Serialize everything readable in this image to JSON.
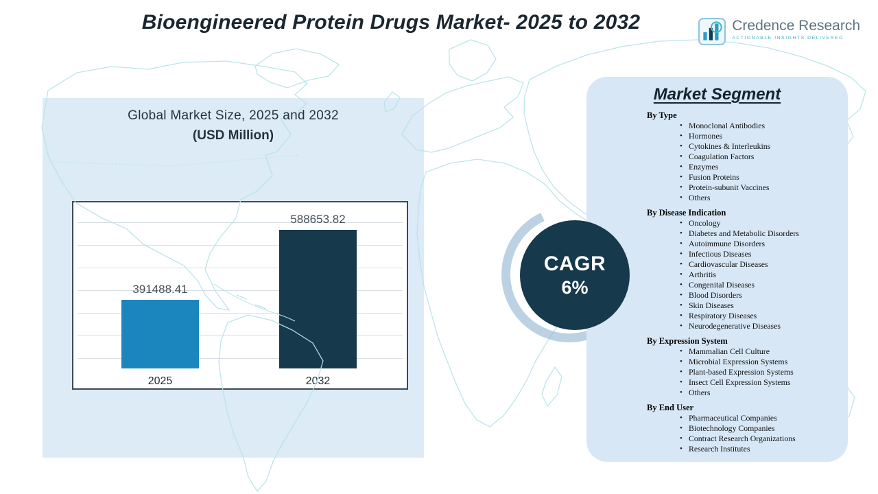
{
  "header": {
    "title": "Bioengineered Protein Drugs Market- 2025 to 2032",
    "logo": {
      "name": "Credence Research",
      "tagline": "Actionable Insights Delivered"
    }
  },
  "chart_panel": {
    "subtitle": "Global Market Size, 2025 and 2032",
    "units": "(USD Million)"
  },
  "chart_data": {
    "type": "bar",
    "title": "Global Market Size, 2025 and 2032 (USD Million)",
    "categories": [
      "2025",
      "2032"
    ],
    "values": [
      391488.41,
      588653.82
    ],
    "value_labels": [
      "391488.41",
      "588653.82"
    ],
    "bar_colors": [
      "#1b86bd",
      "#16394b"
    ],
    "xlabel": "",
    "ylabel": "",
    "ylim": [
      200000,
      650000
    ],
    "grid": true,
    "legend": false
  },
  "cagr": {
    "label": "CAGR",
    "value": "6%"
  },
  "segments": {
    "title": "Market Segment",
    "groups": [
      {
        "heading": "By Type",
        "items": [
          "Monoclonal Antibodies",
          "Hormones",
          "Cytokines & Interleukins",
          "Coagulation Factors",
          "Enzymes",
          "Fusion Proteins",
          "Protein-subunit Vaccines",
          "Others"
        ]
      },
      {
        "heading": "By Disease Indication",
        "items": [
          "Oncology",
          "Diabetes and Metabolic Disorders",
          "Autoimmune Disorders",
          "Infectious Diseases",
          "Cardiovascular Diseases",
          "Arthritis",
          "Congenital Diseases",
          "Blood Disorders",
          "Skin Diseases",
          "Respiratory Diseases",
          "Neurodegenerative Diseases"
        ]
      },
      {
        "heading": "By Expression System",
        "items": [
          "Mammalian Cell Culture",
          "Microbial Expression Systems",
          "Plant-based Expression Systems",
          "Insect Cell Expression Systems",
          "Others"
        ]
      },
      {
        "heading": "By End User",
        "items": [
          "Pharmaceutical Companies",
          "Biotechnology Companies",
          "Contract Research Organizations",
          "Research Institutes"
        ]
      }
    ]
  },
  "colors": {
    "bar_2025": "#1b86bd",
    "bar_2032": "#16394b",
    "cagr_circle": "#16394b",
    "panel_background": "#d9e8f6",
    "map_outline": "#b9e3e9",
    "logo_teal": "#49b7c4"
  }
}
